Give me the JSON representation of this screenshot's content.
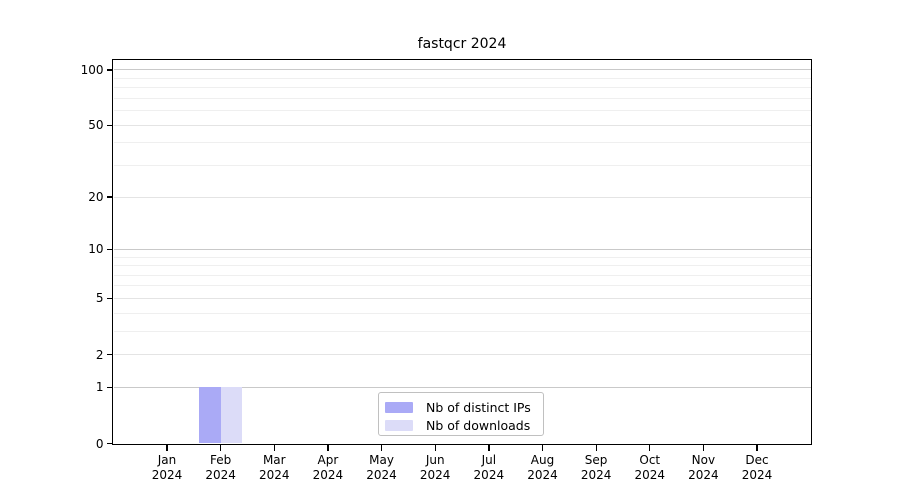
{
  "chart_data": {
    "type": "bar",
    "title": "fastqcr 2024",
    "months": [
      "Jan",
      "Feb",
      "Mar",
      "Apr",
      "May",
      "Jun",
      "Jul",
      "Aug",
      "Sep",
      "Oct",
      "Nov",
      "Dec"
    ],
    "year_label": "2024",
    "series": [
      {
        "name": "Nb of distinct IPs",
        "color": "#aaaaf6",
        "values": [
          0,
          1,
          0,
          0,
          0,
          0,
          0,
          0,
          0,
          0,
          0,
          0
        ]
      },
      {
        "name": "Nb of downloads",
        "color": "#dcdcf8",
        "values": [
          0,
          1,
          0,
          0,
          0,
          0,
          0,
          0,
          0,
          0,
          0,
          0
        ]
      }
    ],
    "y_scale": "log1p",
    "ylim": [
      0,
      112.5
    ],
    "yticks": [
      0,
      1,
      2,
      5,
      10,
      20,
      50,
      100
    ],
    "y_minor_gridlines": [
      3,
      4,
      6,
      7,
      8,
      9,
      30,
      40,
      60,
      70,
      80,
      90
    ],
    "grid": "horizontal",
    "legend_position": "lower center"
  },
  "colors": {
    "background": "#ffffff",
    "spine": "#000000",
    "grid_decade": "#c9c9c9",
    "grid_labeled": "#e4e4e4",
    "grid_minor": "#efefef",
    "legend_border": "#c0c0c0",
    "text": "#000000"
  }
}
